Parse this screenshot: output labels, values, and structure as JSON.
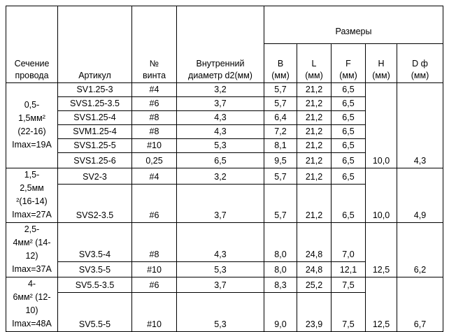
{
  "header": {
    "section": [
      "Сечение",
      "провода"
    ],
    "article": [
      "Артикул"
    ],
    "screw": [
      "№",
      "винта"
    ],
    "diameter": [
      "Внутренний",
      "диаметр d2(мм)"
    ],
    "sizes": [
      "Размеры"
    ],
    "B": [
      "B",
      "(мм)"
    ],
    "L": [
      "L",
      "(мм)"
    ],
    "F": [
      "F",
      "(мм)"
    ],
    "H": [
      "H",
      "(мм)"
    ],
    "D": [
      "D ф",
      "(мм)"
    ]
  },
  "groups": [
    {
      "section": [
        "0,5-",
        "1,5мм²",
        "(22-16)",
        "Imax=19A"
      ],
      "H": "10,0",
      "D": "4,3",
      "rows": [
        [
          "SV1.25-3",
          "#4",
          "3,2",
          "5,7",
          "21,2",
          "6,5"
        ],
        [
          "SVS1.25-3.5",
          "#6",
          "3,7",
          "5,7",
          "21,2",
          "6,5"
        ],
        [
          "SVS1.25-4",
          "#8",
          "4,3",
          "6,4",
          "21,2",
          "6,5"
        ],
        [
          "SVM1.25-4",
          "#8",
          "4,3",
          "7,2",
          "21,2",
          "6,5"
        ],
        [
          "SVS1.25-5",
          "#10",
          "5,3",
          "8,1",
          "21,2",
          "6,5"
        ],
        [
          "SVS1.25-6",
          "0,25",
          "6,5",
          "9,5",
          "21,2",
          "6,5"
        ]
      ]
    },
    {
      "section": [
        "1,5-",
        "2,5мм",
        "²(16-14)",
        "Imax=27A"
      ],
      "H": "10,0",
      "D": "4,9",
      "rows": [
        [
          "SV2-3",
          "#4",
          "3,2",
          "5,7",
          "21,2",
          "6,5"
        ],
        [
          "SVS2-3.5",
          "#6",
          "3,7",
          "5,7",
          "21,2",
          "6,5"
        ]
      ]
    },
    {
      "section": [
        "2,5-",
        "4мм² (14-",
        "12)",
        "Imax=37A"
      ],
      "H": "12,5",
      "D": "6,2",
      "rows": [
        [
          "SV3.5-4",
          "#8",
          "4,3",
          "8,0",
          "24,8",
          "7,0"
        ],
        [
          "SV3.5-5",
          "#10",
          "5,3",
          "8,0",
          "24,8",
          "12,1"
        ]
      ]
    },
    {
      "section": [
        "4-",
        "6мм² (12-",
        "10)",
        "Imax=48A"
      ],
      "H": "12,5",
      "D": "6,7",
      "rows": [
        [
          "SV5.5-3.5",
          "#6",
          "3,7",
          "8,3",
          "25,2",
          "7,5"
        ],
        [
          "SV5.5-5",
          "#10",
          "5,3",
          "9,0",
          "23,9",
          "7,5"
        ]
      ]
    }
  ]
}
